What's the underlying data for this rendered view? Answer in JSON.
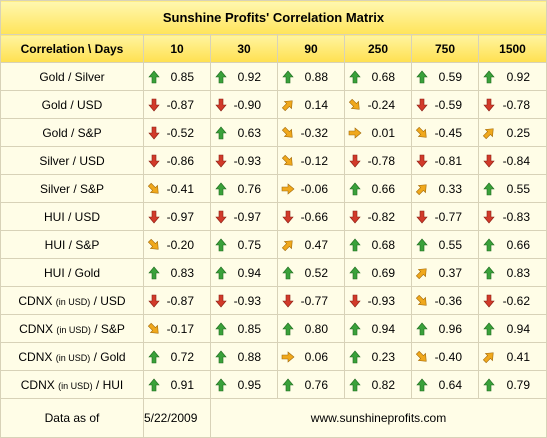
{
  "title": "Sunshine Profits' Correlation Matrix",
  "header": {
    "corner": "Correlation \\ Days",
    "days": [
      "10",
      "30",
      "90",
      "250",
      "750",
      "1500"
    ]
  },
  "rows": [
    {
      "pair": [
        {
          "t": "Gold / Silver",
          "s": false
        }
      ],
      "cells": [
        {
          "v": "0.85",
          "a": "up"
        },
        {
          "v": "0.92",
          "a": "up"
        },
        {
          "v": "0.88",
          "a": "up"
        },
        {
          "v": "0.68",
          "a": "up"
        },
        {
          "v": "0.59",
          "a": "up"
        },
        {
          "v": "0.92",
          "a": "up"
        }
      ]
    },
    {
      "pair": [
        {
          "t": "Gold / USD",
          "s": false
        }
      ],
      "cells": [
        {
          "v": "-0.87",
          "a": "down"
        },
        {
          "v": "-0.90",
          "a": "down"
        },
        {
          "v": "0.14",
          "a": "up-right"
        },
        {
          "v": "-0.24",
          "a": "down-right"
        },
        {
          "v": "-0.59",
          "a": "down"
        },
        {
          "v": "-0.78",
          "a": "down"
        }
      ]
    },
    {
      "pair": [
        {
          "t": "Gold / S&P",
          "s": false
        }
      ],
      "cells": [
        {
          "v": "-0.52",
          "a": "down"
        },
        {
          "v": "0.63",
          "a": "up"
        },
        {
          "v": "-0.32",
          "a": "down-right"
        },
        {
          "v": "0.01",
          "a": "right"
        },
        {
          "v": "-0.45",
          "a": "down-right"
        },
        {
          "v": "0.25",
          "a": "up-right"
        }
      ]
    },
    {
      "pair": [
        {
          "t": "Silver / USD",
          "s": false
        }
      ],
      "cells": [
        {
          "v": "-0.86",
          "a": "down"
        },
        {
          "v": "-0.93",
          "a": "down"
        },
        {
          "v": "-0.12",
          "a": "down-right"
        },
        {
          "v": "-0.78",
          "a": "down"
        },
        {
          "v": "-0.81",
          "a": "down"
        },
        {
          "v": "-0.84",
          "a": "down"
        }
      ]
    },
    {
      "pair": [
        {
          "t": "Silver / S&P",
          "s": false
        }
      ],
      "cells": [
        {
          "v": "-0.41",
          "a": "down-right"
        },
        {
          "v": "0.76",
          "a": "up"
        },
        {
          "v": "-0.06",
          "a": "right"
        },
        {
          "v": "0.66",
          "a": "up"
        },
        {
          "v": "0.33",
          "a": "up-right"
        },
        {
          "v": "0.55",
          "a": "up"
        }
      ]
    },
    {
      "pair": [
        {
          "t": "HUI / USD",
          "s": false
        }
      ],
      "cells": [
        {
          "v": "-0.97",
          "a": "down"
        },
        {
          "v": "-0.97",
          "a": "down"
        },
        {
          "v": "-0.66",
          "a": "down"
        },
        {
          "v": "-0.82",
          "a": "down"
        },
        {
          "v": "-0.77",
          "a": "down"
        },
        {
          "v": "-0.83",
          "a": "down"
        }
      ]
    },
    {
      "pair": [
        {
          "t": "HUI / S&P",
          "s": false
        }
      ],
      "cells": [
        {
          "v": "-0.20",
          "a": "down-right"
        },
        {
          "v": "0.75",
          "a": "up"
        },
        {
          "v": "0.47",
          "a": "up-right"
        },
        {
          "v": "0.68",
          "a": "up"
        },
        {
          "v": "0.55",
          "a": "up"
        },
        {
          "v": "0.66",
          "a": "up"
        }
      ]
    },
    {
      "pair": [
        {
          "t": "HUI / Gold",
          "s": false
        }
      ],
      "cells": [
        {
          "v": "0.83",
          "a": "up"
        },
        {
          "v": "0.94",
          "a": "up"
        },
        {
          "v": "0.52",
          "a": "up"
        },
        {
          "v": "0.69",
          "a": "up"
        },
        {
          "v": "0.37",
          "a": "up-right"
        },
        {
          "v": "0.83",
          "a": "up"
        }
      ]
    },
    {
      "pair": [
        {
          "t": "CDNX ",
          "s": false
        },
        {
          "t": "(in USD)",
          "s": true
        },
        {
          "t": " / USD",
          "s": false
        }
      ],
      "cells": [
        {
          "v": "-0.87",
          "a": "down"
        },
        {
          "v": "-0.93",
          "a": "down"
        },
        {
          "v": "-0.77",
          "a": "down"
        },
        {
          "v": "-0.93",
          "a": "down"
        },
        {
          "v": "-0.36",
          "a": "down-right"
        },
        {
          "v": "-0.62",
          "a": "down"
        }
      ]
    },
    {
      "pair": [
        {
          "t": "CDNX ",
          "s": false
        },
        {
          "t": "(in USD)",
          "s": true
        },
        {
          "t": " / S&P",
          "s": false
        }
      ],
      "cells": [
        {
          "v": "-0.17",
          "a": "down-right"
        },
        {
          "v": "0.85",
          "a": "up"
        },
        {
          "v": "0.80",
          "a": "up"
        },
        {
          "v": "0.94",
          "a": "up"
        },
        {
          "v": "0.96",
          "a": "up"
        },
        {
          "v": "0.94",
          "a": "up"
        }
      ]
    },
    {
      "pair": [
        {
          "t": "CDNX ",
          "s": false
        },
        {
          "t": "(in USD)",
          "s": true
        },
        {
          "t": " / Gold",
          "s": false
        }
      ],
      "cells": [
        {
          "v": "0.72",
          "a": "up"
        },
        {
          "v": "0.88",
          "a": "up"
        },
        {
          "v": "0.06",
          "a": "right"
        },
        {
          "v": "0.23",
          "a": "up"
        },
        {
          "v": "-0.40",
          "a": "down-right"
        },
        {
          "v": "0.41",
          "a": "up-right"
        }
      ]
    },
    {
      "pair": [
        {
          "t": "CDNX ",
          "s": false
        },
        {
          "t": "(in USD)",
          "s": true
        },
        {
          "t": " / HUI",
          "s": false
        }
      ],
      "cells": [
        {
          "v": "0.91",
          "a": "up"
        },
        {
          "v": "0.95",
          "a": "up"
        },
        {
          "v": "0.76",
          "a": "up"
        },
        {
          "v": "0.82",
          "a": "up"
        },
        {
          "v": "0.64",
          "a": "up"
        },
        {
          "v": "0.79",
          "a": "up"
        }
      ]
    }
  ],
  "footer": {
    "label": "Data as of",
    "date": "5/22/2009",
    "url": "www.sunshineprofits.com"
  },
  "colors": {
    "up": "#3aa13a",
    "down": "#d23a2a",
    "diagonal": "#f0a81c",
    "header_bg": "#ffe45a",
    "cell_bg": "#fffde7"
  },
  "icons": {
    "up": "green-up-arrow-icon",
    "down": "red-down-arrow-icon",
    "up-right": "orange-up-right-arrow-icon",
    "down-right": "orange-down-right-arrow-icon",
    "right": "orange-right-arrow-icon"
  }
}
